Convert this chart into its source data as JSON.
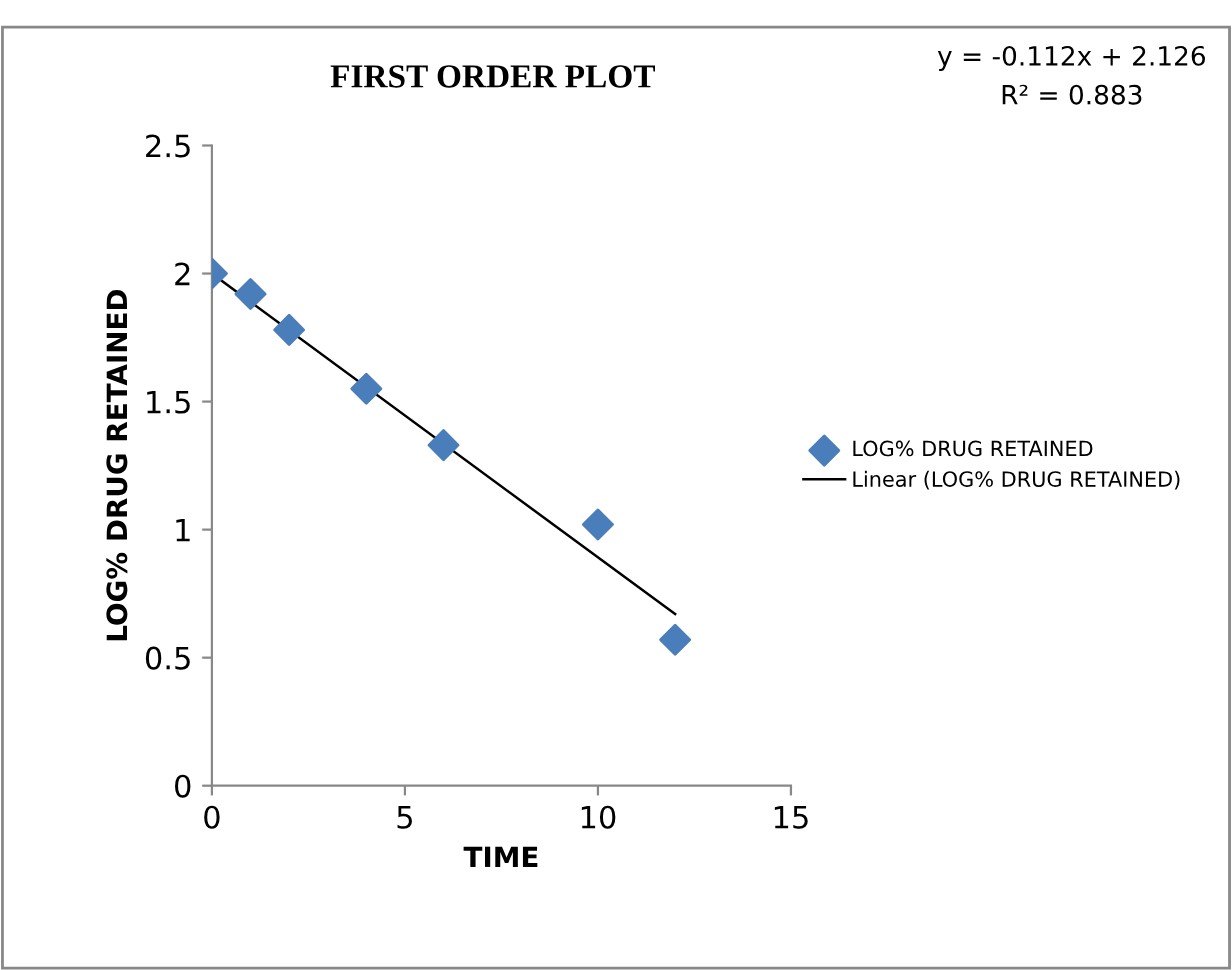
{
  "chart_data": {
    "type": "scatter",
    "title": "FIRST ORDER PLOT",
    "xlabel": "TIME",
    "ylabel": "LOG% DRUG RETAINED",
    "x": [
      0,
      1,
      2,
      4,
      6,
      10,
      12
    ],
    "series": [
      {
        "name": "LOG% DRUG RETAINED",
        "color": "#4a7ebb",
        "marker": "diamond",
        "values": [
          2.0,
          1.92,
          1.78,
          1.55,
          1.33,
          1.02,
          0.57
        ]
      },
      {
        "name": "Linear (LOG% DRUG RETAINED)",
        "type": "line",
        "color": "#000000",
        "marker": "none",
        "line_style": "solid",
        "x": [
          0,
          12
        ],
        "values": [
          2.0,
          0.67
        ]
      }
    ],
    "annotations": [
      "y = -0.112x + 2.126",
      "R² = 0.883"
    ],
    "xlim": [
      0,
      15
    ],
    "xticks": [
      0,
      5,
      10,
      15
    ],
    "ylim": [
      0,
      2.5
    ],
    "yticks": [
      0,
      0.5,
      1,
      1.5,
      2,
      2.5
    ],
    "grid": false,
    "legend": "right"
  }
}
